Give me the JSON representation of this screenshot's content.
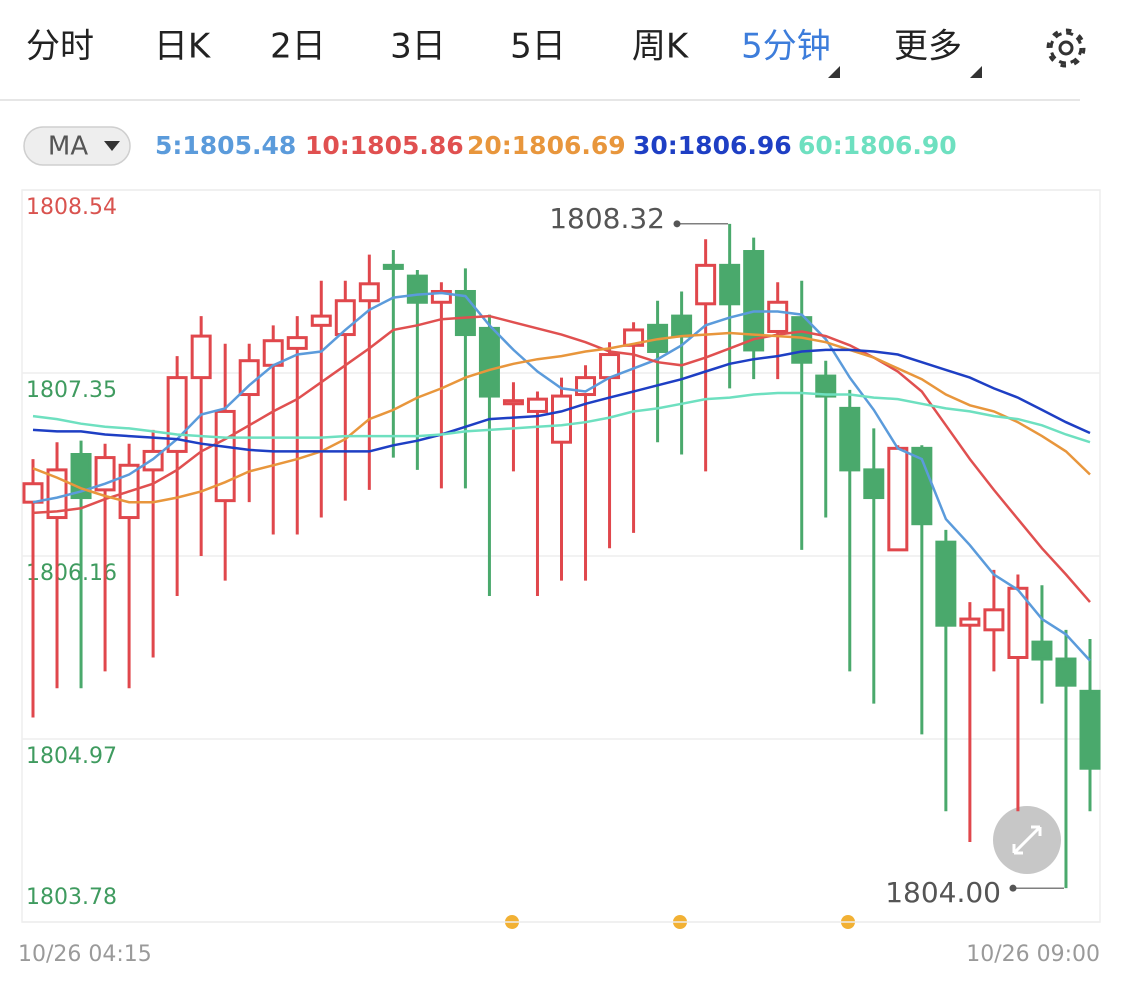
{
  "tabs": [
    "分时",
    "日K",
    "2日",
    "3日",
    "5日",
    "周K",
    "5分钟",
    "更多"
  ],
  "active_tab": 6,
  "indicator": "MA",
  "chart_data": {
    "type": "candlestick",
    "categories": [
      "10/26 04:15",
      null,
      null,
      null,
      null,
      null,
      null,
      null,
      null,
      null,
      null,
      null,
      null,
      null,
      null,
      null,
      null,
      null,
      null,
      null,
      null,
      null,
      null,
      null,
      null,
      null,
      null,
      null,
      null,
      null,
      null,
      null,
      null,
      null,
      null,
      null,
      null,
      null,
      null,
      null,
      null,
      null,
      null,
      null,
      "10/26 09:00"
    ],
    "open": [
      1806.51,
      1806.41,
      1806.82,
      1806.59,
      1806.41,
      1806.72,
      1806.84,
      1807.32,
      1806.52,
      1807.21,
      1807.4,
      1807.51,
      1807.66,
      1807.6,
      1807.82,
      1808.05,
      1807.98,
      1807.81,
      1807.88,
      1807.64,
      1807.15,
      1807.1,
      1806.9,
      1807.21,
      1807.32,
      1807.53,
      1807.66,
      1807.72,
      1807.8,
      1808.05,
      1808.14,
      1807.62,
      1807.71,
      1807.33,
      1807.12,
      1806.72,
      1806.2,
      1806.86,
      1806.25,
      1805.71,
      1805.68,
      1805.5,
      1805.6,
      1805.49,
      1805.28
    ],
    "high": [
      1806.79,
      1806.9,
      1806.91,
      1806.89,
      1806.89,
      1806.98,
      1807.46,
      1807.72,
      1807.54,
      1807.54,
      1807.66,
      1807.72,
      1807.95,
      1807.95,
      1808.12,
      1808.15,
      1808.02,
      1807.94,
      1808.03,
      1807.73,
      1807.29,
      1807.23,
      1807.32,
      1807.4,
      1807.55,
      1807.68,
      1807.82,
      1807.88,
      1808.22,
      1808.32,
      1808.23,
      1807.94,
      1807.95,
      1807.43,
      1807.24,
      1806.99,
      1806.88,
      1806.88,
      1806.33,
      1805.86,
      1806.07,
      1806.04,
      1805.97,
      1805.68,
      1805.62
    ],
    "low": [
      1805.11,
      1805.3,
      1805.3,
      1805.41,
      1805.3,
      1805.5,
      1805.9,
      1806.16,
      1806.0,
      1806.51,
      1806.3,
      1806.3,
      1806.41,
      1806.52,
      1806.59,
      1806.8,
      1806.72,
      1806.6,
      1806.6,
      1805.9,
      1806.71,
      1805.9,
      1806.0,
      1806.0,
      1806.21,
      1806.31,
      1806.9,
      1806.82,
      1806.71,
      1807.25,
      1807.31,
      1807.31,
      1806.2,
      1806.41,
      1805.41,
      1805.2,
      1806.2,
      1805.0,
      1804.5,
      1804.3,
      1805.41,
      1804.5,
      1805.2,
      1804.0,
      1804.5
    ],
    "close": [
      1806.63,
      1806.72,
      1806.54,
      1806.8,
      1806.75,
      1806.84,
      1807.32,
      1807.59,
      1807.1,
      1807.43,
      1807.56,
      1807.58,
      1807.72,
      1807.82,
      1807.93,
      1808.03,
      1807.81,
      1807.88,
      1807.6,
      1807.2,
      1807.17,
      1807.18,
      1807.2,
      1807.32,
      1807.47,
      1807.63,
      1807.49,
      1807.59,
      1808.05,
      1807.8,
      1807.5,
      1807.81,
      1807.42,
      1807.2,
      1806.72,
      1806.54,
      1806.86,
      1806.37,
      1805.71,
      1805.75,
      1805.81,
      1805.95,
      1805.49,
      1805.32,
      1804.78
    ],
    "up_color": "#e0474c",
    "down_color": "#4aa96c",
    "series": [
      {
        "name": "5:1805.48",
        "color": "#5b9bdb",
        "values": [
          1806.51,
          1806.54,
          1806.58,
          1806.63,
          1806.69,
          1806.79,
          1806.92,
          1807.08,
          1807.12,
          1807.27,
          1807.4,
          1807.47,
          1807.49,
          1807.63,
          1807.76,
          1807.84,
          1807.86,
          1807.87,
          1807.85,
          1807.66,
          1807.5,
          1807.36,
          1807.25,
          1807.23,
          1807.32,
          1807.38,
          1807.44,
          1807.53,
          1807.66,
          1807.71,
          1807.75,
          1807.75,
          1807.73,
          1807.57,
          1807.32,
          1807.11,
          1806.86,
          1806.79,
          1806.4,
          1806.23,
          1806.04,
          1805.94,
          1805.75,
          1805.65,
          1805.48
        ]
      },
      {
        "name": "10:1805.86",
        "color": "#e05050",
        "values": [
          1806.44,
          1806.45,
          1806.47,
          1806.53,
          1806.58,
          1806.63,
          1806.72,
          1806.84,
          1806.92,
          1807.01,
          1807.1,
          1807.18,
          1807.29,
          1807.4,
          1807.51,
          1807.63,
          1807.66,
          1807.7,
          1807.71,
          1807.72,
          1807.68,
          1807.64,
          1807.6,
          1807.55,
          1807.49,
          1807.47,
          1807.42,
          1807.4,
          1807.45,
          1807.51,
          1807.57,
          1807.6,
          1807.62,
          1807.59,
          1807.53,
          1807.45,
          1807.36,
          1807.23,
          1807.01,
          1806.79,
          1806.59,
          1806.4,
          1806.21,
          1806.04,
          1805.86
        ]
      },
      {
        "name": "20:1806.69",
        "color": "#e8963c",
        "values": [
          1806.73,
          1806.67,
          1806.6,
          1806.55,
          1806.51,
          1806.51,
          1806.54,
          1806.58,
          1806.64,
          1806.71,
          1806.75,
          1806.79,
          1806.84,
          1806.92,
          1807.05,
          1807.11,
          1807.19,
          1807.25,
          1807.32,
          1807.37,
          1807.41,
          1807.44,
          1807.46,
          1807.49,
          1807.51,
          1807.54,
          1807.57,
          1807.59,
          1807.6,
          1807.61,
          1807.6,
          1807.59,
          1807.58,
          1807.55,
          1807.5,
          1807.45,
          1807.38,
          1807.31,
          1807.21,
          1807.14,
          1807.1,
          1807.03,
          1806.94,
          1806.84,
          1806.69
        ]
      },
      {
        "name": "30:1806.96",
        "color": "#1e3fc4",
        "values": [
          1806.98,
          1806.97,
          1806.97,
          1806.95,
          1806.94,
          1806.93,
          1806.92,
          1806.89,
          1806.87,
          1806.85,
          1806.84,
          1806.84,
          1806.84,
          1806.84,
          1806.84,
          1806.88,
          1806.91,
          1806.95,
          1807.0,
          1807.05,
          1807.06,
          1807.07,
          1807.1,
          1807.15,
          1807.19,
          1807.23,
          1807.27,
          1807.31,
          1807.36,
          1807.41,
          1807.44,
          1807.46,
          1807.49,
          1807.5,
          1807.5,
          1807.49,
          1807.47,
          1807.42,
          1807.37,
          1807.32,
          1807.25,
          1807.19,
          1807.11,
          1807.03,
          1806.96
        ]
      },
      {
        "name": "60:1806.90",
        "color": "#6ee0c0",
        "values": [
          1807.07,
          1807.05,
          1807.02,
          1807.0,
          1806.99,
          1806.97,
          1806.95,
          1806.94,
          1806.93,
          1806.93,
          1806.93,
          1806.93,
          1806.93,
          1806.94,
          1806.94,
          1806.94,
          1806.94,
          1806.95,
          1806.97,
          1806.98,
          1806.99,
          1807.0,
          1807.01,
          1807.03,
          1807.06,
          1807.1,
          1807.12,
          1807.15,
          1807.18,
          1807.19,
          1807.21,
          1807.22,
          1807.22,
          1807.21,
          1807.21,
          1807.19,
          1807.18,
          1807.15,
          1807.12,
          1807.1,
          1807.07,
          1807.05,
          1807.01,
          1806.95,
          1806.9
        ]
      }
    ],
    "max": 1808.32,
    "min": {
      "value": 1804,
      "label": "1804.00"
    },
    "ylim": [
      1803.78,
      1808.54
    ],
    "yticks": [
      1808.54,
      1807.35,
      1806.16,
      1804.97,
      1803.78
    ],
    "ytick_colors": [
      "#d9534f",
      "#3f9b5f",
      "#3f9b5f",
      "#3f9b5f",
      "#3f9b5f"
    ],
    "grid": true
  }
}
